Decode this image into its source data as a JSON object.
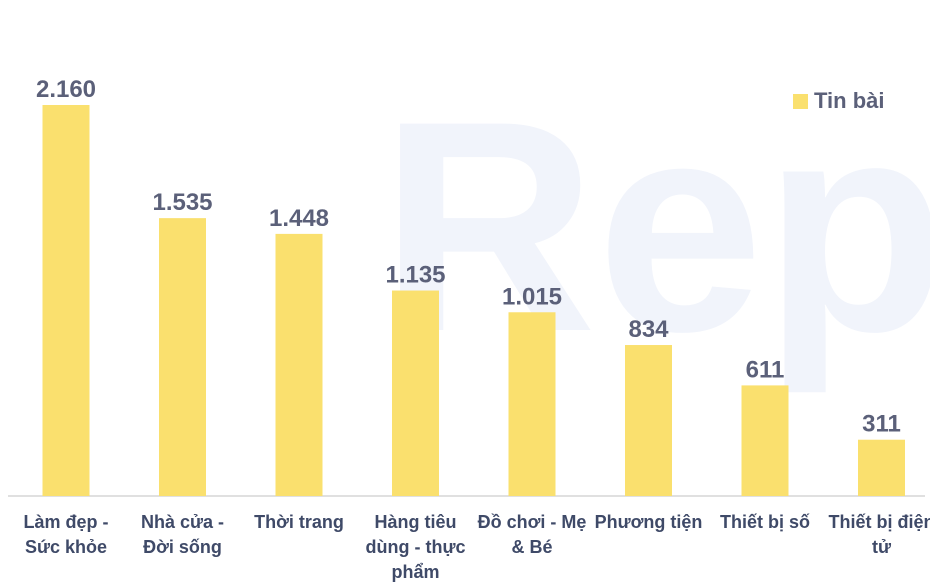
{
  "chart_data": {
    "type": "bar",
    "watermark": "Rep",
    "categories": [
      "Làm đẹp - Sức khỏe",
      "Nhà cửa - Đời sống",
      "Thời trang",
      "Hàng tiêu dùng - thực phẩm",
      "Đồ chơi - Mẹ & Bé",
      "Phương tiện",
      "Thiết bị số",
      "Thiết bị điện tử"
    ],
    "series": [
      {
        "name": "Tin bài",
        "color": "#fae06e",
        "values": [
          2160,
          1535,
          1448,
          1135,
          1015,
          834,
          611,
          311
        ],
        "value_labels": [
          "2.160",
          "1.535",
          "1.448",
          "1.135",
          "1.015",
          "834",
          "611",
          "311"
        ]
      }
    ],
    "legend": "top-right"
  }
}
